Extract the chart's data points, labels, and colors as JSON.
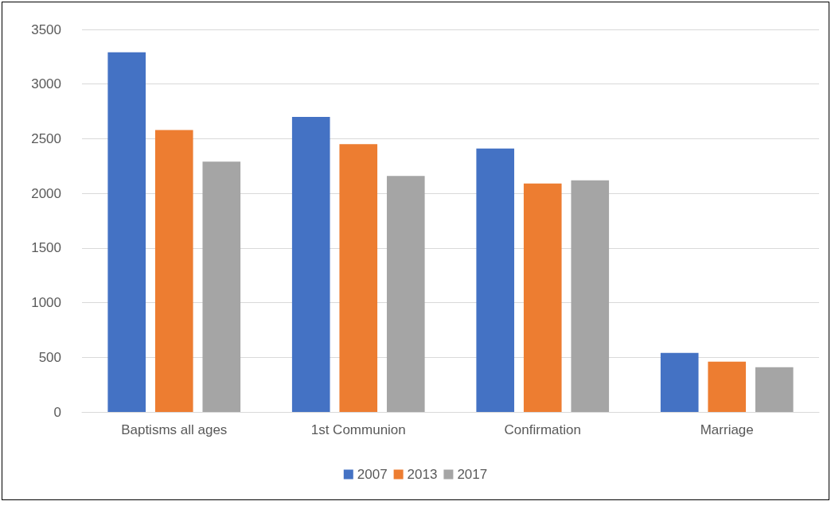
{
  "chart_data": {
    "type": "bar",
    "categories": [
      "Baptisms all ages",
      "1st Communion",
      "Confirmation",
      "Marriage"
    ],
    "series": [
      {
        "name": "2007",
        "color": "#4472c4",
        "values": [
          3290,
          2700,
          2410,
          540
        ]
      },
      {
        "name": "2013",
        "color": "#ed7d31",
        "values": [
          2580,
          2450,
          2090,
          460
        ]
      },
      {
        "name": "2017",
        "color": "#a5a5a5",
        "values": [
          2290,
          2160,
          2120,
          410
        ]
      }
    ],
    "ylim": [
      0,
      3500
    ],
    "yticks": [
      0,
      500,
      1000,
      1500,
      2000,
      2500,
      3000,
      3500
    ],
    "grid": "y",
    "legend": "bottom"
  }
}
